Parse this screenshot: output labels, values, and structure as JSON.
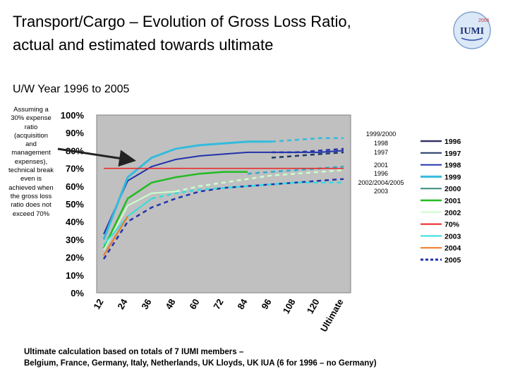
{
  "page": {
    "title_line1": "Transport/Cargo – Evolution of Gross Loss Ratio,",
    "title_line2": "actual and estimated towards ultimate",
    "subtitle": "U/W Year 1996 to 2005",
    "note_lines": [
      "Assuming a",
      "30% expense",
      "ratio",
      "(acquisition",
      "and",
      "management",
      "expenses),",
      "technical break",
      "even is",
      "achieved when",
      "the gross loss",
      "ratio does not",
      "exceed 70%"
    ],
    "footer_line1": "Ultimate calculation based on totals of 7 IUMI members –",
    "footer_line2": "Belgium, France, Germany, Italy, Netherlands, UK Lloyds, UK IUA (6 for 1996 – no Germany)",
    "logo_text": "IUMI",
    "logo_year": "2006"
  },
  "chart_data": {
    "type": "line",
    "x_categories": [
      "12",
      "24",
      "36",
      "48",
      "60",
      "72",
      "84",
      "96",
      "108",
      "120",
      "Ultimate"
    ],
    "y_ticks": [
      "100%",
      "90%",
      "80%",
      "70%",
      "60%",
      "50%",
      "40%",
      "30%",
      "20%",
      "10%",
      "0%"
    ],
    "ylim": [
      0,
      100
    ],
    "grid": false,
    "legend_placement": "right",
    "annotations": [
      "1999/2000",
      "1998",
      "1997",
      "2001",
      "1996",
      "2002/2004/2005",
      "2003"
    ],
    "series": [
      {
        "name": "1996",
        "color": "#333366",
        "dash": false,
        "width": 2.5,
        "values": [
          null,
          null,
          null,
          null,
          null,
          null,
          null,
          null,
          null,
          null,
          null
        ]
      },
      {
        "name": "1997",
        "color": "#1f3864",
        "dash": false,
        "width": 1.5,
        "values": [
          null,
          null,
          null,
          null,
          null,
          null,
          null,
          null,
          null,
          null,
          null
        ]
      },
      {
        "name": "1998",
        "color": "#2233aa",
        "dash": false,
        "width": 2,
        "values": [
          33,
          63,
          71,
          75,
          77,
          78,
          79,
          79,
          79,
          79,
          80
        ]
      },
      {
        "name": "1999",
        "color": "#33bbdd",
        "dash": false,
        "width": 3,
        "values": [
          30,
          65,
          76,
          81,
          83,
          84,
          85,
          85,
          null,
          null,
          null
        ]
      },
      {
        "name": "2000",
        "color": "#3a8a7a",
        "dash": false,
        "width": 1.5,
        "values": [
          null,
          null,
          null,
          null,
          null,
          null,
          null,
          null,
          null,
          null,
          null
        ]
      },
      {
        "name": "2001",
        "color": "#22bb22",
        "dash": false,
        "width": 2.5,
        "values": [
          25,
          53,
          62,
          65,
          67,
          68,
          68,
          null,
          null,
          null,
          null
        ]
      },
      {
        "name": "2002",
        "color": "#ccffcc",
        "dash": false,
        "width": 2,
        "values": [
          24,
          49,
          56,
          57,
          null,
          null,
          null,
          null,
          null,
          null,
          null
        ]
      },
      {
        "name": "70%",
        "color": "#ee2222",
        "dash": false,
        "width": 1.5,
        "values": [
          70,
          70,
          70,
          70,
          70,
          70,
          70,
          70,
          70,
          70,
          70
        ]
      },
      {
        "name": "2003",
        "color": "#33dddd",
        "dash": false,
        "width": 2,
        "values": [
          27,
          43,
          53,
          null,
          null,
          null,
          null,
          null,
          null,
          null,
          null
        ]
      },
      {
        "name": "2004",
        "color": "#ee7722",
        "dash": false,
        "width": 2,
        "values": [
          21,
          43,
          null,
          null,
          null,
          null,
          null,
          null,
          null,
          null,
          null
        ]
      },
      {
        "name": "2005",
        "color": "#2233aa",
        "dash": true,
        "width": 3,
        "values": [
          19,
          null,
          null,
          null,
          null,
          null,
          null,
          null,
          null,
          null,
          null
        ]
      }
    ],
    "projections": [
      {
        "color": "#33bbdd",
        "start": 7,
        "values": [
          85,
          86,
          87,
          87
        ]
      },
      {
        "color": "#2233aa",
        "start": 7,
        "values": [
          79,
          79,
          80,
          81
        ]
      },
      {
        "color": "#1f3864",
        "start": 7,
        "values": [
          76,
          77,
          78,
          79
        ]
      },
      {
        "color": "#33aacc",
        "start": 6,
        "values": [
          67,
          68,
          69,
          70,
          71
        ]
      },
      {
        "color": "#ccffcc",
        "start": 3,
        "values": [
          57,
          60,
          62,
          64,
          66,
          67,
          68,
          69
        ]
      },
      {
        "color": "#2233aa",
        "start": 0,
        "values": [
          19,
          40,
          48,
          53,
          57,
          59,
          60,
          61,
          62,
          63,
          64
        ]
      },
      {
        "color": "#33dddd",
        "start": 2,
        "values": [
          53,
          56,
          58,
          59,
          60,
          61,
          62,
          62,
          62
        ]
      }
    ]
  }
}
